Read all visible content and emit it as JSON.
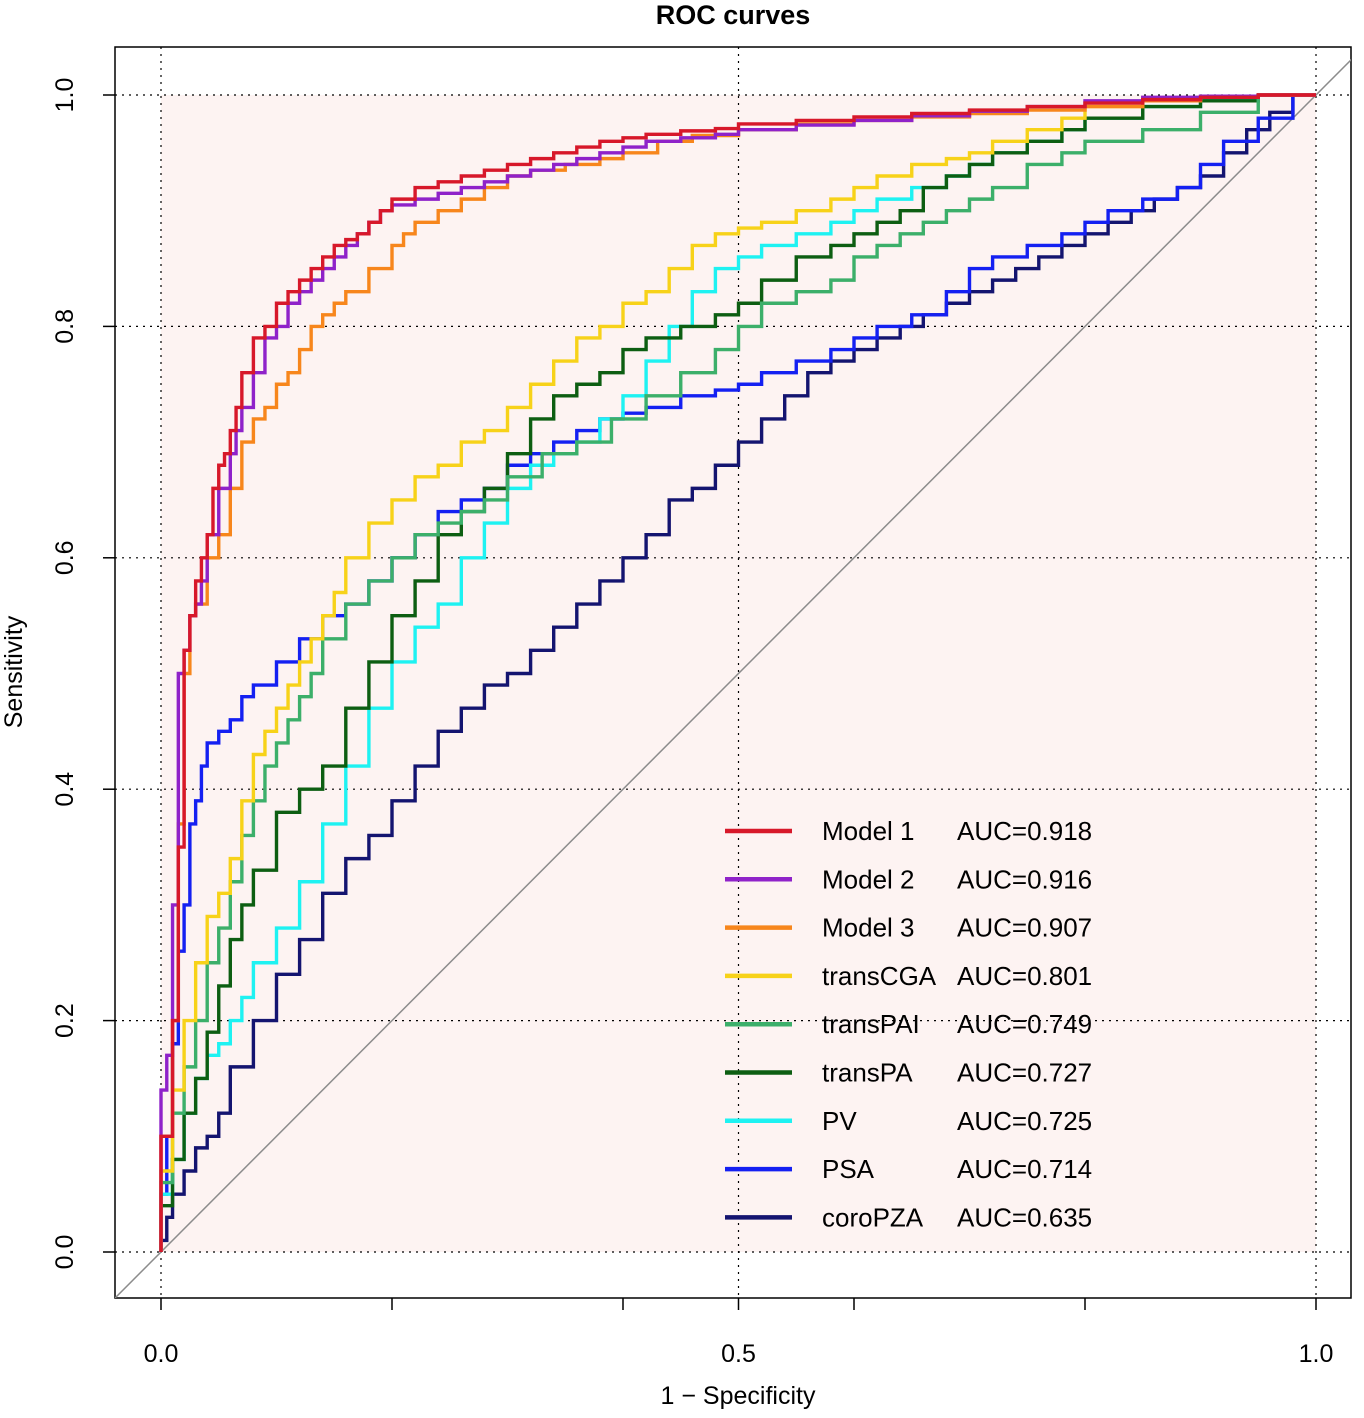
{
  "chart_data": {
    "type": "line",
    "title": "ROC curves",
    "xlabel": "1 − Specificity",
    "ylabel": "Sensitivity",
    "xlim": [
      0,
      1
    ],
    "ylim": [
      0,
      1
    ],
    "x_ticks": [
      {
        "value": 0,
        "label": "0.0"
      },
      {
        "value": 0.2,
        "label": ""
      },
      {
        "value": 0.4,
        "label": ""
      },
      {
        "value": 0.5,
        "label": "0.5"
      },
      {
        "value": 0.6,
        "label": ""
      },
      {
        "value": 0.8,
        "label": ""
      },
      {
        "value": 1,
        "label": "1.0"
      }
    ],
    "y_ticks": [
      {
        "value": 0,
        "label": "0.0"
      },
      {
        "value": 0.2,
        "label": "0.2"
      },
      {
        "value": 0.4,
        "label": "0.4"
      },
      {
        "value": 0.6,
        "label": "0.6"
      },
      {
        "value": 0.8,
        "label": "0.8"
      },
      {
        "value": 1,
        "label": "1.0"
      }
    ],
    "x_gridlines": [
      0,
      0.5,
      1
    ],
    "y_gridlines": [
      0,
      0.2,
      0.4,
      0.6,
      0.8,
      1
    ],
    "grid": "dotted",
    "background_fill": "#fdf3f2",
    "reference_line": "diagonal",
    "legend_position": "bottom-right",
    "series": [
      {
        "name": "Model 1",
        "auc": "AUC=0.918",
        "color": "#d7182a",
        "x": [
          0,
          0.01,
          0.015,
          0.02,
          0.02,
          0.025,
          0.03,
          0.035,
          0.04,
          0.045,
          0.05,
          0.055,
          0.06,
          0.065,
          0.07,
          0.08,
          0.09,
          0.1,
          0.11,
          0.12,
          0.13,
          0.14,
          0.15,
          0.16,
          0.17,
          0.18,
          0.19,
          0.2,
          0.22,
          0.24,
          0.26,
          0.28,
          0.3,
          0.32,
          0.34,
          0.36,
          0.38,
          0.4,
          0.42,
          0.45,
          0.48,
          0.5,
          0.55,
          0.6,
          0.65,
          0.7,
          0.75,
          0.8,
          0.85,
          0.9,
          0.95,
          1
        ],
        "y": [
          0,
          0.1,
          0.2,
          0.35,
          0.48,
          0.52,
          0.55,
          0.58,
          0.6,
          0.62,
          0.66,
          0.68,
          0.69,
          0.71,
          0.73,
          0.76,
          0.79,
          0.8,
          0.82,
          0.83,
          0.84,
          0.85,
          0.86,
          0.87,
          0.875,
          0.88,
          0.89,
          0.9,
          0.91,
          0.92,
          0.925,
          0.93,
          0.935,
          0.94,
          0.945,
          0.95,
          0.955,
          0.96,
          0.963,
          0.966,
          0.969,
          0.971,
          0.975,
          0.978,
          0.981,
          0.984,
          0.987,
          0.99,
          0.993,
          0.996,
          0.998,
          1
        ]
      },
      {
        "name": "Model 2",
        "auc": "AUC=0.916",
        "color": "#8f22c9",
        "x": [
          0,
          0.005,
          0.01,
          0.015,
          0.02,
          0.025,
          0.03,
          0.035,
          0.04,
          0.05,
          0.06,
          0.065,
          0.07,
          0.08,
          0.09,
          0.1,
          0.11,
          0.12,
          0.13,
          0.14,
          0.15,
          0.16,
          0.17,
          0.18,
          0.19,
          0.2,
          0.22,
          0.24,
          0.26,
          0.28,
          0.3,
          0.32,
          0.34,
          0.36,
          0.38,
          0.4,
          0.42,
          0.45,
          0.48,
          0.5,
          0.55,
          0.6,
          0.65,
          0.7,
          0.75,
          0.8,
          0.85,
          0.9,
          0.95,
          1
        ],
        "y": [
          0,
          0.14,
          0.17,
          0.3,
          0.5,
          0.52,
          0.55,
          0.56,
          0.58,
          0.62,
          0.66,
          0.69,
          0.71,
          0.73,
          0.76,
          0.79,
          0.8,
          0.82,
          0.83,
          0.84,
          0.85,
          0.86,
          0.87,
          0.88,
          0.89,
          0.9,
          0.905,
          0.91,
          0.915,
          0.92,
          0.925,
          0.93,
          0.935,
          0.94,
          0.945,
          0.95,
          0.955,
          0.96,
          0.963,
          0.966,
          0.97,
          0.974,
          0.978,
          0.982,
          0.986,
          0.99,
          0.995,
          0.998,
          0.999,
          1
        ]
      },
      {
        "name": "Model 3",
        "auc": "AUC=0.907",
        "color": "#f7861c",
        "x": [
          0,
          0.01,
          0.015,
          0.02,
          0.025,
          0.03,
          0.035,
          0.04,
          0.05,
          0.06,
          0.07,
          0.08,
          0.09,
          0.1,
          0.11,
          0.12,
          0.13,
          0.14,
          0.15,
          0.16,
          0.18,
          0.2,
          0.21,
          0.22,
          0.24,
          0.26,
          0.28,
          0.3,
          0.32,
          0.35,
          0.38,
          0.4,
          0.43,
          0.46,
          0.5,
          0.55,
          0.6,
          0.65,
          0.7,
          0.75,
          0.8,
          0.85,
          0.9,
          0.95,
          1
        ],
        "y": [
          0,
          0.1,
          0.2,
          0.37,
          0.5,
          0.55,
          0.56,
          0.56,
          0.6,
          0.62,
          0.66,
          0.7,
          0.72,
          0.73,
          0.75,
          0.76,
          0.78,
          0.8,
          0.81,
          0.82,
          0.83,
          0.85,
          0.87,
          0.88,
          0.89,
          0.9,
          0.91,
          0.92,
          0.93,
          0.935,
          0.94,
          0.945,
          0.95,
          0.96,
          0.965,
          0.97,
          0.975,
          0.978,
          0.981,
          0.984,
          0.987,
          0.99,
          0.995,
          0.998,
          1
        ]
      },
      {
        "name": "transCGA",
        "auc": "AUC=0.801",
        "color": "#f7d219",
        "x": [
          0,
          0.01,
          0.02,
          0.03,
          0.04,
          0.05,
          0.06,
          0.07,
          0.08,
          0.09,
          0.1,
          0.11,
          0.12,
          0.13,
          0.14,
          0.15,
          0.16,
          0.18,
          0.2,
          0.22,
          0.24,
          0.26,
          0.28,
          0.3,
          0.32,
          0.34,
          0.36,
          0.38,
          0.4,
          0.42,
          0.44,
          0.46,
          0.48,
          0.5,
          0.52,
          0.55,
          0.58,
          0.6,
          0.62,
          0.65,
          0.68,
          0.7,
          0.72,
          0.75,
          0.78,
          0.8,
          0.85,
          0.9,
          0.95,
          1
        ],
        "y": [
          0,
          0.07,
          0.14,
          0.2,
          0.25,
          0.29,
          0.31,
          0.34,
          0.39,
          0.43,
          0.45,
          0.47,
          0.49,
          0.51,
          0.53,
          0.55,
          0.57,
          0.6,
          0.63,
          0.65,
          0.67,
          0.68,
          0.7,
          0.71,
          0.73,
          0.75,
          0.77,
          0.79,
          0.8,
          0.82,
          0.83,
          0.85,
          0.87,
          0.88,
          0.885,
          0.89,
          0.9,
          0.91,
          0.92,
          0.93,
          0.94,
          0.945,
          0.95,
          0.96,
          0.97,
          0.98,
          0.99,
          0.995,
          0.998,
          1
        ]
      },
      {
        "name": "transPAI",
        "auc": "AUC=0.749",
        "color": "#3caf6a",
        "x": [
          0,
          0.01,
          0.02,
          0.03,
          0.04,
          0.05,
          0.06,
          0.07,
          0.08,
          0.09,
          0.1,
          0.11,
          0.12,
          0.13,
          0.14,
          0.16,
          0.18,
          0.2,
          0.22,
          0.24,
          0.26,
          0.28,
          0.3,
          0.33,
          0.36,
          0.39,
          0.42,
          0.45,
          0.48,
          0.5,
          0.52,
          0.55,
          0.58,
          0.6,
          0.62,
          0.64,
          0.66,
          0.68,
          0.7,
          0.72,
          0.75,
          0.78,
          0.8,
          0.85,
          0.9,
          0.95,
          1
        ],
        "y": [
          0,
          0.06,
          0.12,
          0.16,
          0.2,
          0.25,
          0.28,
          0.32,
          0.36,
          0.39,
          0.42,
          0.44,
          0.46,
          0.48,
          0.5,
          0.53,
          0.56,
          0.58,
          0.6,
          0.62,
          0.63,
          0.64,
          0.65,
          0.67,
          0.69,
          0.7,
          0.72,
          0.74,
          0.76,
          0.78,
          0.8,
          0.82,
          0.83,
          0.84,
          0.86,
          0.87,
          0.88,
          0.89,
          0.9,
          0.91,
          0.92,
          0.94,
          0.95,
          0.96,
          0.97,
          0.985,
          1
        ]
      },
      {
        "name": "transPA",
        "auc": "AUC=0.727",
        "color": "#0d5e12",
        "x": [
          0,
          0.01,
          0.02,
          0.03,
          0.04,
          0.05,
          0.06,
          0.07,
          0.08,
          0.1,
          0.12,
          0.14,
          0.16,
          0.18,
          0.2,
          0.22,
          0.24,
          0.26,
          0.28,
          0.3,
          0.32,
          0.34,
          0.36,
          0.38,
          0.4,
          0.42,
          0.45,
          0.48,
          0.5,
          0.52,
          0.55,
          0.58,
          0.6,
          0.62,
          0.64,
          0.66,
          0.68,
          0.7,
          0.72,
          0.75,
          0.78,
          0.8,
          0.85,
          0.9,
          0.95,
          1
        ],
        "y": [
          0,
          0.04,
          0.08,
          0.12,
          0.15,
          0.19,
          0.23,
          0.27,
          0.3,
          0.33,
          0.38,
          0.4,
          0.42,
          0.47,
          0.51,
          0.55,
          0.58,
          0.62,
          0.64,
          0.66,
          0.69,
          0.72,
          0.74,
          0.75,
          0.76,
          0.78,
          0.79,
          0.8,
          0.81,
          0.82,
          0.84,
          0.86,
          0.87,
          0.88,
          0.89,
          0.9,
          0.92,
          0.93,
          0.94,
          0.95,
          0.96,
          0.97,
          0.98,
          0.99,
          0.995,
          1
        ]
      },
      {
        "name": "PV",
        "auc": "AUC=0.725",
        "color": "#1ef2f2",
        "x": [
          0,
          0.01,
          0.02,
          0.03,
          0.04,
          0.05,
          0.06,
          0.07,
          0.08,
          0.1,
          0.12,
          0.14,
          0.16,
          0.18,
          0.2,
          0.22,
          0.24,
          0.26,
          0.28,
          0.3,
          0.32,
          0.34,
          0.36,
          0.38,
          0.4,
          0.42,
          0.44,
          0.46,
          0.48,
          0.5,
          0.52,
          0.55,
          0.58,
          0.6,
          0.62,
          0.65,
          0.68,
          0.7,
          0.72,
          0.75,
          0.78,
          0.8,
          0.85,
          0.9,
          0.95,
          1
        ],
        "y": [
          0,
          0.05,
          0.08,
          0.12,
          0.15,
          0.17,
          0.18,
          0.2,
          0.22,
          0.25,
          0.28,
          0.32,
          0.37,
          0.42,
          0.47,
          0.51,
          0.54,
          0.56,
          0.6,
          0.63,
          0.66,
          0.68,
          0.69,
          0.7,
          0.72,
          0.74,
          0.77,
          0.8,
          0.83,
          0.85,
          0.86,
          0.87,
          0.88,
          0.89,
          0.9,
          0.91,
          0.92,
          0.93,
          0.94,
          0.95,
          0.96,
          0.97,
          0.98,
          0.99,
          0.995,
          1
        ]
      },
      {
        "name": "PSA",
        "auc": "AUC=0.714",
        "color": "#1420f2",
        "x": [
          0,
          0.005,
          0.01,
          0.015,
          0.02,
          0.025,
          0.03,
          0.035,
          0.04,
          0.05,
          0.06,
          0.07,
          0.08,
          0.1,
          0.12,
          0.14,
          0.16,
          0.18,
          0.2,
          0.22,
          0.24,
          0.26,
          0.28,
          0.3,
          0.32,
          0.34,
          0.36,
          0.38,
          0.4,
          0.42,
          0.45,
          0.48,
          0.5,
          0.52,
          0.55,
          0.58,
          0.6,
          0.62,
          0.65,
          0.68,
          0.7,
          0.72,
          0.75,
          0.78,
          0.8,
          0.82,
          0.85,
          0.88,
          0.9,
          0.92,
          0.95,
          0.98,
          1
        ],
        "y": [
          0,
          0.05,
          0.1,
          0.18,
          0.26,
          0.3,
          0.37,
          0.39,
          0.42,
          0.44,
          0.45,
          0.46,
          0.48,
          0.49,
          0.51,
          0.53,
          0.55,
          0.56,
          0.58,
          0.6,
          0.62,
          0.64,
          0.65,
          0.66,
          0.68,
          0.69,
          0.7,
          0.71,
          0.72,
          0.725,
          0.73,
          0.74,
          0.745,
          0.75,
          0.76,
          0.77,
          0.78,
          0.79,
          0.8,
          0.81,
          0.83,
          0.85,
          0.86,
          0.87,
          0.88,
          0.89,
          0.9,
          0.91,
          0.92,
          0.94,
          0.96,
          0.98,
          1
        ]
      },
      {
        "name": "coroPZA",
        "auc": "AUC=0.635",
        "color": "#141470",
        "x": [
          0,
          0.005,
          0.01,
          0.02,
          0.03,
          0.04,
          0.05,
          0.06,
          0.08,
          0.1,
          0.12,
          0.14,
          0.16,
          0.18,
          0.2,
          0.22,
          0.24,
          0.26,
          0.28,
          0.3,
          0.32,
          0.34,
          0.36,
          0.38,
          0.4,
          0.42,
          0.44,
          0.46,
          0.48,
          0.5,
          0.52,
          0.54,
          0.56,
          0.58,
          0.6,
          0.62,
          0.64,
          0.66,
          0.68,
          0.7,
          0.72,
          0.74,
          0.76,
          0.78,
          0.8,
          0.82,
          0.84,
          0.86,
          0.88,
          0.9,
          0.92,
          0.94,
          0.96,
          0.98,
          1
        ],
        "y": [
          0,
          0.01,
          0.03,
          0.05,
          0.07,
          0.09,
          0.1,
          0.12,
          0.16,
          0.2,
          0.24,
          0.27,
          0.31,
          0.34,
          0.36,
          0.39,
          0.42,
          0.45,
          0.47,
          0.49,
          0.5,
          0.52,
          0.54,
          0.56,
          0.58,
          0.6,
          0.62,
          0.65,
          0.66,
          0.68,
          0.7,
          0.72,
          0.74,
          0.76,
          0.77,
          0.78,
          0.79,
          0.8,
          0.81,
          0.82,
          0.83,
          0.84,
          0.85,
          0.86,
          0.87,
          0.88,
          0.89,
          0.9,
          0.91,
          0.92,
          0.93,
          0.95,
          0.97,
          0.985,
          1
        ]
      }
    ]
  }
}
